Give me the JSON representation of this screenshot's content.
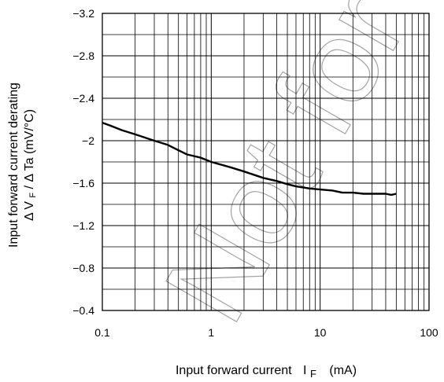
{
  "chart_data": {
    "type": "line",
    "xlabel": "Input forward current",
    "xlabel_symbol": "I",
    "xlabel_subscript": "F",
    "xlabel_unit": "(mA)",
    "ylabel_line1": "Input forward current derating",
    "ylabel_line2": "Δ V",
    "ylabel_line2_sub": "F",
    "ylabel_line2_rest": " / Δ Ta (mV/°C)",
    "x_scale": "log",
    "xlim": [
      0.1,
      100
    ],
    "ylim": [
      -0.4,
      -3.2
    ],
    "y_direction": "reversed (−3.2 at top, −0.4 at bottom)",
    "grid": true,
    "x_ticks": [
      {
        "value": 0.1,
        "label": "0.1"
      },
      {
        "value": 1,
        "label": "1"
      },
      {
        "value": 10,
        "label": "10"
      },
      {
        "value": 100,
        "label": "100"
      }
    ],
    "y_ticks": [
      {
        "value": -3.2,
        "label": "−3.2"
      },
      {
        "value": -2.8,
        "label": "−2.8"
      },
      {
        "value": -2.4,
        "label": "−2.4"
      },
      {
        "value": -2.0,
        "label": "−2"
      },
      {
        "value": -1.6,
        "label": "−1.6"
      },
      {
        "value": -1.2,
        "label": "−1.2"
      },
      {
        "value": -0.8,
        "label": "−0.8"
      },
      {
        "value": -0.4,
        "label": "−0.4"
      }
    ],
    "series": [
      {
        "color": "#000000",
        "points": [
          [
            0.1,
            -2.17
          ],
          [
            0.12,
            -2.14
          ],
          [
            0.15,
            -2.1
          ],
          [
            0.2,
            -2.06
          ],
          [
            0.3,
            -2.0
          ],
          [
            0.4,
            -1.96
          ],
          [
            0.5,
            -1.91
          ],
          [
            0.6,
            -1.87
          ],
          [
            0.8,
            -1.84
          ],
          [
            1.0,
            -1.8
          ],
          [
            1.5,
            -1.75
          ],
          [
            2.0,
            -1.71
          ],
          [
            3.0,
            -1.65
          ],
          [
            4.0,
            -1.62
          ],
          [
            5.0,
            -1.59
          ],
          [
            6.0,
            -1.57
          ],
          [
            8.0,
            -1.55
          ],
          [
            10,
            -1.54
          ],
          [
            13,
            -1.53
          ],
          [
            16,
            -1.51
          ],
          [
            20,
            -1.51
          ],
          [
            25,
            -1.5
          ],
          [
            30,
            -1.5
          ],
          [
            40,
            -1.5
          ],
          [
            45,
            -1.49
          ],
          [
            50,
            -1.5
          ]
        ]
      }
    ],
    "watermark_text": "Not for"
  }
}
